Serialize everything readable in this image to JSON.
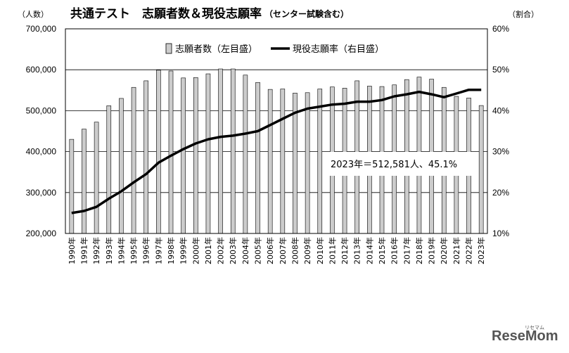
{
  "chart_data": {
    "type": "bar",
    "title": "共通テスト　志願者数＆現役志願率",
    "subtitle": "（センター試験含む）",
    "ylabel_left": "（人数）",
    "ylabel_right": "（割合）",
    "ylim_left": [
      200000,
      700000
    ],
    "ylim_right": [
      10,
      60
    ],
    "yticks_left": [
      "200,000",
      "300,000",
      "400,000",
      "500,000",
      "600,000",
      "700,000"
    ],
    "yticks_right": [
      "10%",
      "20%",
      "30%",
      "40%",
      "50%",
      "60%"
    ],
    "grid": true,
    "legend_position": "top-center",
    "categories": [
      "1990年",
      "1991年",
      "1992年",
      "1993年",
      "1994年",
      "1995年",
      "1996年",
      "1997年",
      "1998年",
      "1999年",
      "2000年",
      "2001年",
      "2002年",
      "2003年",
      "2004年",
      "2005年",
      "2006年",
      "2007年",
      "2008年",
      "2009年",
      "2010年",
      "2011年",
      "2012年",
      "2013年",
      "2014年",
      "2015年",
      "2016年",
      "2017年",
      "2018年",
      "2019年",
      "2020年",
      "2021年",
      "2022年",
      "2023年"
    ],
    "series": [
      {
        "name": "志願者数（左目盛）",
        "type": "bar",
        "axis": "left",
        "color": "#cccccc",
        "values": [
          430000,
          455000,
          472000,
          512000,
          530000,
          557000,
          573000,
          599000,
          597000,
          580000,
          581000,
          590000,
          602000,
          602000,
          587000,
          569000,
          552000,
          553000,
          543000,
          544000,
          553000,
          558000,
          555000,
          573000,
          560000,
          559000,
          563000,
          576000,
          582000,
          577000,
          557000,
          535000,
          531000,
          512581
        ]
      },
      {
        "name": "現役志願率（右目盛）",
        "type": "line",
        "axis": "right",
        "color": "#000000",
        "values": [
          15.0,
          15.5,
          16.5,
          18.5,
          20.3,
          22.5,
          24.5,
          27.3,
          29.0,
          30.6,
          32.0,
          33.0,
          33.6,
          33.9,
          34.4,
          35.0,
          36.5,
          38.0,
          39.5,
          40.5,
          41.0,
          41.5,
          41.7,
          42.2,
          42.2,
          42.6,
          43.5,
          44.0,
          44.6,
          44.0,
          43.3,
          44.2,
          45.1,
          45.1
        ]
      }
    ],
    "annotation": "2023年＝512,581人、45.1%"
  },
  "branding": {
    "logo": "ReseMom",
    "logo_sub": "リセマム",
    "logo_color": "#555555"
  }
}
